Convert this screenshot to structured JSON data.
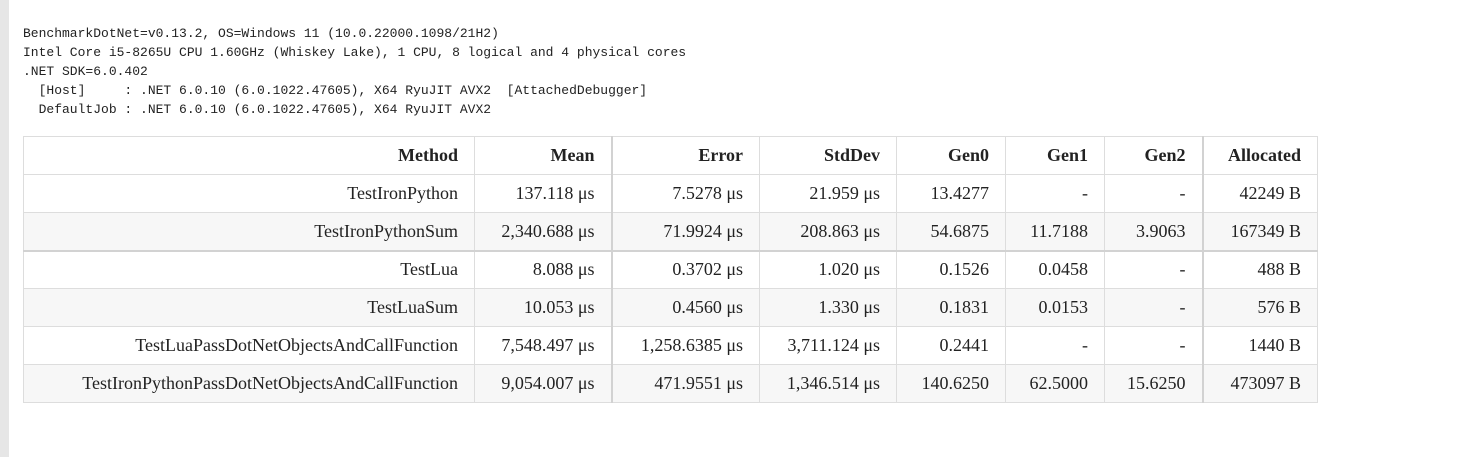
{
  "environment": {
    "lines": [
      "BenchmarkDotNet=v0.13.2, OS=Windows 11 (10.0.22000.1098/21H2)",
      "Intel Core i5-8265U CPU 1.60GHz (Whiskey Lake), 1 CPU, 8 logical and 4 physical cores",
      ".NET SDK=6.0.402",
      "  [Host]     : .NET 6.0.10 (6.0.1022.47605), X64 RyuJIT AVX2  [AttachedDebugger]",
      "  DefaultJob : .NET 6.0.10 (6.0.1022.47605), X64 RyuJIT AVX2"
    ]
  },
  "table": {
    "headers": [
      "Method",
      "Mean",
      "Error",
      "StdDev",
      "Gen0",
      "Gen1",
      "Gen2",
      "Allocated"
    ],
    "rows": [
      [
        "TestIronPython",
        "137.118 μs",
        "7.5278 μs",
        "21.959 μs",
        "13.4277",
        "-",
        "-",
        "42249 B"
      ],
      [
        "TestIronPythonSum",
        "2,340.688 μs",
        "71.9924 μs",
        "208.863 μs",
        "54.6875",
        "11.7188",
        "3.9063",
        "167349 B"
      ],
      [
        "TestLua",
        "8.088 μs",
        "0.3702 μs",
        "1.020 μs",
        "0.1526",
        "0.0458",
        "-",
        "488 B"
      ],
      [
        "TestLuaSum",
        "10.053 μs",
        "0.4560 μs",
        "1.330 μs",
        "0.1831",
        "0.0153",
        "-",
        "576 B"
      ],
      [
        "TestLuaPassDotNetObjectsAndCallFunction",
        "7,548.497 μs",
        "1,258.6385 μs",
        "3,711.124 μs",
        "0.2441",
        "-",
        "-",
        "1440 B"
      ],
      [
        "TestIronPythonPassDotNetObjectsAndCallFunction",
        "9,054.007 μs",
        "471.9551 μs",
        "1,346.514 μs",
        "140.6250",
        "62.5000",
        "15.6250",
        "473097 B"
      ]
    ]
  }
}
